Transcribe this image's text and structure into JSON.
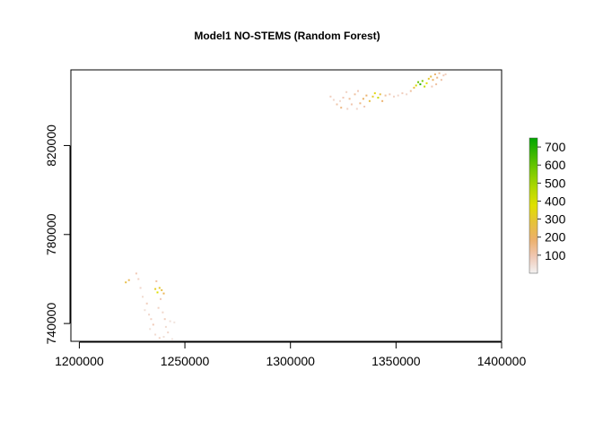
{
  "chart_data": {
    "type": "heatmap",
    "title": "Model1 NO-STEMS (Random Forest)",
    "xlabel": "",
    "ylabel": "",
    "xlim": [
      1196000,
      1400000
    ],
    "ylim": [
      732000,
      854000
    ],
    "x_ticks": [
      1200000,
      1250000,
      1300000,
      1350000,
      1400000
    ],
    "x_tick_labels": [
      "1200000",
      "1250000",
      "1300000",
      "1350000",
      "1400000"
    ],
    "y_ticks": [
      740000,
      780000,
      820000
    ],
    "y_tick_labels": [
      "740000",
      "780000",
      "820000"
    ],
    "legend": {
      "placement": "right",
      "range": [
        0,
        750
      ],
      "ticks": [
        100,
        200,
        300,
        400,
        500,
        600,
        700
      ],
      "tick_labels": [
        "100",
        "200",
        "300",
        "400",
        "500",
        "600",
        "700"
      ],
      "colors": [
        "#f2f2f2",
        "#f0c7b3",
        "#ecb06a",
        "#e6c23a",
        "#e0e000",
        "#b3d800",
        "#7ccb00",
        "#3fb800",
        "#00a600"
      ]
    },
    "clusters": [
      {
        "name": "south-west",
        "points": [
          [
            1222000,
            758500,
            260
          ],
          [
            1223500,
            759500,
            220
          ],
          [
            1227000,
            762500,
            90
          ],
          [
            1228000,
            760000,
            70
          ],
          [
            1229000,
            756000,
            60
          ],
          [
            1230000,
            752000,
            50
          ],
          [
            1232000,
            749000,
            80
          ],
          [
            1231000,
            746000,
            40
          ],
          [
            1233000,
            744000,
            60
          ],
          [
            1234000,
            742000,
            70
          ],
          [
            1235000,
            739500,
            90
          ],
          [
            1236000,
            755500,
            320
          ],
          [
            1237000,
            754000,
            380
          ],
          [
            1238000,
            756000,
            300
          ],
          [
            1239000,
            755000,
            260
          ],
          [
            1240000,
            753500,
            220
          ],
          [
            1236500,
            759000,
            120
          ],
          [
            1238500,
            751000,
            90
          ],
          [
            1237500,
            747000,
            70
          ],
          [
            1239500,
            745000,
            60
          ],
          [
            1240500,
            742000,
            80
          ],
          [
            1241000,
            738500,
            50
          ],
          [
            1242000,
            736000,
            60
          ],
          [
            1243000,
            741000,
            40
          ],
          [
            1238000,
            733500,
            70
          ],
          [
            1244000,
            733000,
            30
          ],
          [
            1245000,
            740500,
            30
          ],
          [
            1233500,
            737500,
            40
          ],
          [
            1236000,
            735000,
            50
          ],
          [
            1240000,
            734000,
            40
          ]
        ]
      },
      {
        "name": "north-east",
        "points": [
          [
            1319000,
            842000,
            80
          ],
          [
            1320500,
            840500,
            60
          ],
          [
            1322000,
            838500,
            110
          ],
          [
            1324000,
            837000,
            160
          ],
          [
            1325000,
            841500,
            90
          ],
          [
            1326500,
            844000,
            70
          ],
          [
            1328000,
            841000,
            130
          ],
          [
            1329000,
            838500,
            100
          ],
          [
            1330500,
            843000,
            120
          ],
          [
            1332000,
            844500,
            90
          ],
          [
            1333000,
            839000,
            150
          ],
          [
            1334500,
            841000,
            200
          ],
          [
            1336000,
            842500,
            180
          ],
          [
            1337500,
            840000,
            260
          ],
          [
            1339000,
            842000,
            300
          ],
          [
            1340000,
            843500,
            350
          ],
          [
            1341500,
            841500,
            420
          ],
          [
            1342500,
            843000,
            260
          ],
          [
            1343500,
            840000,
            180
          ],
          [
            1345000,
            842500,
            120
          ],
          [
            1347000,
            843000,
            90
          ],
          [
            1349000,
            842000,
            70
          ],
          [
            1351000,
            842500,
            60
          ],
          [
            1353000,
            843500,
            80
          ],
          [
            1355000,
            843000,
            60
          ],
          [
            1357000,
            844500,
            120
          ],
          [
            1358500,
            846000,
            260
          ],
          [
            1359500,
            847000,
            400
          ],
          [
            1360500,
            848500,
            600
          ],
          [
            1361500,
            847500,
            700
          ],
          [
            1362500,
            849000,
            560
          ],
          [
            1363500,
            846500,
            450
          ],
          [
            1364500,
            848000,
            380
          ],
          [
            1365500,
            850000,
            300
          ],
          [
            1366500,
            851000,
            250
          ],
          [
            1367500,
            849500,
            200
          ],
          [
            1368500,
            852000,
            180
          ],
          [
            1369500,
            850500,
            150
          ],
          [
            1370500,
            852500,
            130
          ],
          [
            1371500,
            849500,
            110
          ],
          [
            1372500,
            851500,
            90
          ],
          [
            1373500,
            852000,
            70
          ],
          [
            1369000,
            847500,
            120
          ],
          [
            1367000,
            846500,
            90
          ],
          [
            1323500,
            840000,
            50
          ],
          [
            1327000,
            836500,
            70
          ],
          [
            1331500,
            836500,
            60
          ],
          [
            1335000,
            837500,
            90
          ]
        ]
      }
    ]
  }
}
